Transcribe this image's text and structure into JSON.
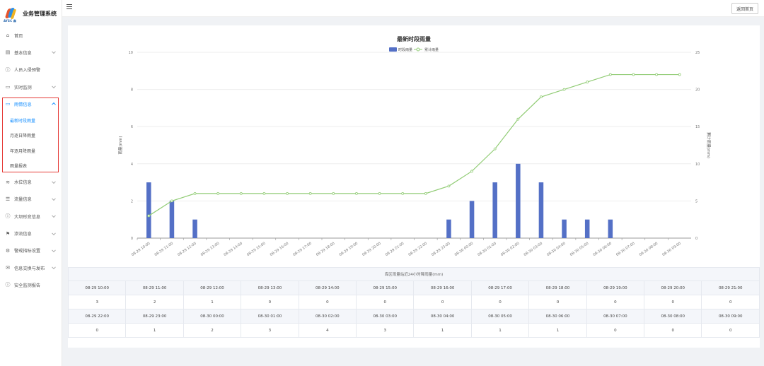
{
  "app": {
    "title": "业务管理系统",
    "logo_sub": "AYSC 森"
  },
  "header": {
    "back_label": "返回首页"
  },
  "sidebar": {
    "items": [
      {
        "label": "首页",
        "icon": "home-icon",
        "expandable": false
      },
      {
        "label": "基本信息",
        "icon": "document-icon",
        "expandable": true
      },
      {
        "label": "人员入侵预警",
        "icon": "info-circle-icon",
        "expandable": false
      },
      {
        "label": "实时监测",
        "icon": "monitor-icon",
        "expandable": true
      },
      {
        "label": "雨情信息",
        "icon": "monitor-icon",
        "expandable": true,
        "expanded": true,
        "children": [
          {
            "label": "最新时段雨量",
            "active": true
          },
          {
            "label": "月逐日降雨量",
            "active": false
          },
          {
            "label": "年逐月降雨量",
            "active": false
          },
          {
            "label": "雨量报表",
            "active": false
          }
        ]
      },
      {
        "label": "水位信息",
        "icon": "water-icon",
        "expandable": true
      },
      {
        "label": "流量信息",
        "icon": "flow-icon",
        "expandable": true
      },
      {
        "label": "大坝形变信息",
        "icon": "info-circle-icon",
        "expandable": true
      },
      {
        "label": "渗流信息",
        "icon": "flag-icon",
        "expandable": true
      },
      {
        "label": "警戒指标设置",
        "icon": "gear-icon",
        "expandable": true
      },
      {
        "label": "信息交换与发布",
        "icon": "mail-icon",
        "expandable": true
      },
      {
        "label": "安全监测报告",
        "icon": "info-circle-icon",
        "expandable": false
      }
    ]
  },
  "chart_data": {
    "type": "bar",
    "title": "最新时段雨量",
    "legend": [
      "时段雨量",
      "累计雨量"
    ],
    "legend_position": "top-center",
    "ylabel": "雨量(mm)",
    "y2label": "累计雨量(mm)",
    "ylim": [
      0,
      10
    ],
    "y2lim": [
      0,
      25
    ],
    "yticks": [
      0,
      2,
      4,
      6,
      8,
      10
    ],
    "y2ticks": [
      0,
      5,
      10,
      15,
      20,
      25
    ],
    "grid": true,
    "categories": [
      "08-29 10:00",
      "08-29 11:00",
      "08-29 12:00",
      "08-29 13:00",
      "08-29 14:00",
      "08-29 15:00",
      "08-29 16:00",
      "08-29 17:00",
      "08-29 18:00",
      "08-29 19:00",
      "08-29 20:00",
      "08-29 21:00",
      "08-29 22:00",
      "08-29 23:00",
      "08-30 00:00",
      "08-30 01:00",
      "08-30 02:00",
      "08-30 03:00",
      "08-30 04:00",
      "08-30 05:00",
      "08-30 06:00",
      "08-30 07:00",
      "08-30 08:00",
      "08-30 09:00"
    ],
    "series": [
      {
        "name": "时段雨量",
        "type": "bar",
        "color": "#5470c6",
        "axis": "left",
        "values": [
          3,
          2,
          1,
          0,
          0,
          0,
          0,
          0,
          0,
          0,
          0,
          0,
          0,
          1,
          2,
          3,
          4,
          3,
          1,
          1,
          1,
          0,
          0,
          0
        ]
      },
      {
        "name": "累计雨量",
        "type": "line",
        "color": "#91cc75",
        "axis": "right",
        "values": [
          3,
          5,
          6,
          6,
          6,
          6,
          6,
          6,
          6,
          6,
          6,
          6,
          6,
          7,
          9,
          12,
          16,
          19,
          20,
          21,
          22,
          22,
          22,
          22
        ]
      }
    ]
  },
  "table": {
    "caption": "库区雨量站近24小时降雨量(mm)",
    "rows": [
      {
        "times": [
          "08-29 10:00",
          "08-29 11:00",
          "08-29 12:00",
          "08-29 13:00",
          "08-29 14:00",
          "08-29 15:00",
          "08-29 16:00",
          "08-29 17:00",
          "08-29 18:00",
          "08-29 19:00",
          "08-29 20:00",
          "08-29 21:00"
        ],
        "values": [
          "3",
          "2",
          "1",
          "0",
          "0",
          "0",
          "0",
          "0",
          "0",
          "0",
          "0",
          "0"
        ]
      },
      {
        "times": [
          "08-29 22:00",
          "08-29 23:00",
          "08-30 00:00",
          "08-30 01:00",
          "08-30 02:00",
          "08-30 03:00",
          "08-30 04:00",
          "08-30 05:00",
          "08-30 06:00",
          "08-30 07:00",
          "08-30 08:00",
          "08-30 09:00"
        ],
        "values": [
          "0",
          "1",
          "2",
          "3",
          "4",
          "3",
          "1",
          "1",
          "1",
          "0",
          "0",
          "0"
        ]
      }
    ]
  }
}
